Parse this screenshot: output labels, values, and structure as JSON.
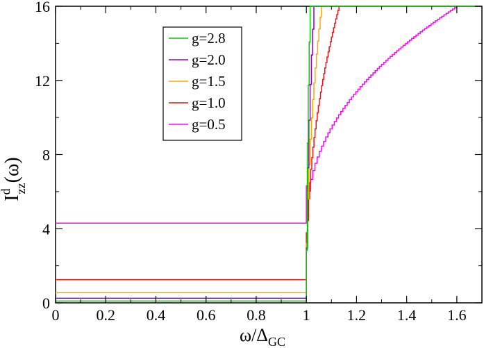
{
  "chart_data": {
    "type": "line",
    "title": "",
    "xlabel": {
      "main": "ω/Δ",
      "sub": "GC"
    },
    "ylabel": {
      "main": "I",
      "sup": "d",
      "sub": "zz",
      "tail": "(ω)"
    },
    "xlim": [
      0,
      1.7
    ],
    "ylim": [
      0,
      16
    ],
    "xticks": [
      0,
      0.2,
      0.4,
      0.6,
      0.8,
      1,
      1.2,
      1.4,
      1.6
    ],
    "xtick_labels": [
      "0",
      "0.2",
      "0.4",
      "0.6",
      "0.8",
      "1",
      "1.2",
      "1.4",
      "1.6"
    ],
    "yticks": [
      0,
      4,
      8,
      12,
      16
    ],
    "ytick_labels": [
      "0",
      "4",
      "8",
      "12",
      "16"
    ],
    "grid": false,
    "legend_position": "top-left inside plot",
    "series": [
      {
        "name": "g=2.8",
        "color": "#00cc00",
        "flat": 0.1,
        "x_end": 1.015,
        "steps": 4
      },
      {
        "name": "g=2.0",
        "color": "#8800cc",
        "flat": 0.25,
        "x_end": 1.03,
        "steps": 6
      },
      {
        "name": "g=1.5",
        "color": "#ffa500",
        "flat": 0.55,
        "x_end": 1.06,
        "steps": 12
      },
      {
        "name": "g=1.0",
        "color": "#ee1111",
        "flat": 1.25,
        "x_end": 1.13,
        "steps": 30
      },
      {
        "name": "g=0.5",
        "color": "#ff00ff",
        "flat": 4.3,
        "x_end": 1.6,
        "steps": 70
      }
    ]
  }
}
